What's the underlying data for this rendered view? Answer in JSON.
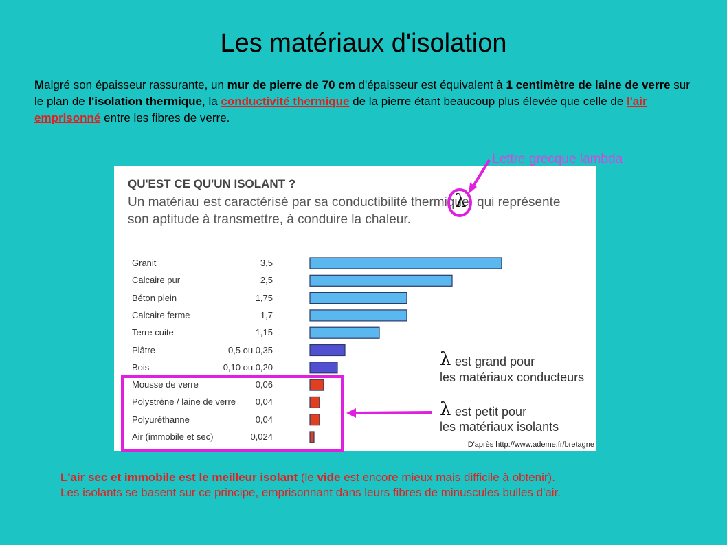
{
  "title": "Les matériaux d'isolation",
  "intro": [
    "M",
    "algré son épaisseur rassurante, un ",
    "mur de pierre de 70 cm",
    " d'épaisseur est équivalent à ",
    "1 centimètre de laine de verre",
    " sur le plan de ",
    "l'isolation thermique",
    ", la ",
    "conductivité thermique",
    " de la pierre étant beaucoup plus élevée que celle de ",
    "l'air emprisonné",
    " entre les fibres de verre."
  ],
  "lambda_note": "Lettre grecque lambda",
  "figure": {
    "heading": "QU'EST CE QU'UN ISOLANT ?",
    "text": [
      "Un matériau",
      "est caractérisé par sa conductibilité thermique",
      "λ",
      "qui représente",
      "son aptitude à transmettre, à conduire la chaleur."
    ],
    "rows": [
      [
        "Granit",
        "3,5"
      ],
      [
        "Calcaire pur",
        "2,5"
      ],
      [
        "Béton plein",
        "1,75"
      ],
      [
        "Calcaire ferme",
        "1,7"
      ],
      [
        "Terre cuite",
        "1,15"
      ],
      [
        "Plâtre",
        "0,5 ou 0,35"
      ],
      [
        "Bois",
        "0,10 ou 0,20"
      ],
      [
        "Mousse de verre",
        "0,06"
      ],
      [
        "Polystrène / laine de verre",
        "0,04"
      ],
      [
        "Polyuréthanne",
        "0,04"
      ],
      [
        "Air (immobile et sec)",
        "0,024"
      ]
    ],
    "notes": [
      "λ",
      "est grand pour",
      "les matériaux conducteurs",
      "λ",
      "est petit pour",
      "les matériaux isolants"
    ],
    "source": "D'après http://www.ademe.fr/bretagne"
  },
  "conclusion": [
    "L'air sec et immobile est le meilleur isolant",
    " (le ",
    "vide",
    " est encore mieux mais difficile à obtenir).",
    "Les isolants se basent sur ce principe, emprisonnant dans leurs fibres de minuscules bulles d'air."
  ]
}
